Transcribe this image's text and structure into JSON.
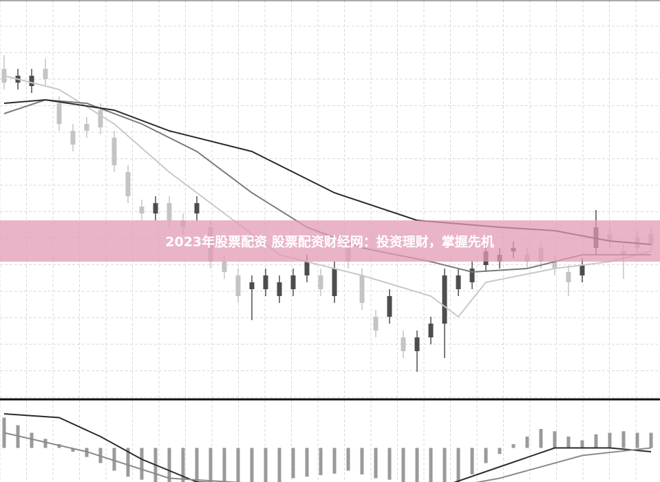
{
  "chart_data": [
    {
      "type": "candlestick",
      "title": "2023年股票配资 股票配资财经网：投资理财，掌握先机",
      "grid": true,
      "up_color": "#4d4d4d",
      "down_color": "#c4c4c4",
      "ylim": [
        0,
        580
      ],
      "open": [
        480,
        460,
        455,
        480,
        430,
        390,
        400,
        420,
        380,
        330,
        280,
        270,
        285,
        260,
        270,
        250,
        200,
        180,
        160,
        160,
        150,
        160,
        180,
        180,
        150,
        220,
        180,
        120,
        120,
        90,
        70,
        90,
        110,
        160,
        170,
        195,
        200,
        215,
        210,
        220,
        200,
        185,
        180,
        220,
        240,
        215,
        235,
        240
      ],
      "close": [
        460,
        470,
        470,
        465,
        400,
        370,
        390,
        395,
        340,
        295,
        270,
        285,
        260,
        250,
        285,
        200,
        185,
        150,
        170,
        180,
        170,
        180,
        200,
        160,
        190,
        200,
        140,
        100,
        150,
        70,
        90,
        110,
        180,
        180,
        190,
        215,
        210,
        220,
        200,
        200,
        190,
        170,
        195,
        250,
        230,
        210,
        220,
        225
      ],
      "high": [
        500,
        480,
        480,
        495,
        440,
        400,
        410,
        430,
        390,
        340,
        290,
        295,
        295,
        270,
        295,
        260,
        210,
        190,
        180,
        190,
        180,
        190,
        210,
        190,
        200,
        230,
        190,
        130,
        160,
        100,
        100,
        120,
        190,
        190,
        200,
        225,
        220,
        230,
        220,
        230,
        210,
        195,
        205,
        275,
        250,
        225,
        245,
        250
      ],
      "low": [
        450,
        450,
        445,
        455,
        390,
        360,
        380,
        385,
        330,
        285,
        260,
        260,
        250,
        240,
        260,
        190,
        175,
        140,
        115,
        150,
        140,
        150,
        170,
        150,
        140,
        190,
        130,
        90,
        110,
        60,
        40,
        80,
        60,
        150,
        160,
        185,
        190,
        205,
        190,
        190,
        180,
        150,
        170,
        210,
        220,
        175,
        210,
        215
      ],
      "series": [
        {
          "color": "#c8c8c8",
          "x": [
            0,
            4,
            8,
            12,
            16,
            20,
            26,
            31,
            33,
            35,
            40,
            44,
            47
          ],
          "values": [
            470,
            450,
            400,
            330,
            270,
            210,
            180,
            150,
            120,
            170,
            190,
            200,
            215
          ]
        },
        {
          "color": "#7a7a7a",
          "x": [
            0,
            3,
            6,
            10,
            14,
            18,
            22,
            26,
            31,
            34,
            38,
            42,
            47
          ],
          "values": [
            415,
            435,
            430,
            400,
            360,
            300,
            250,
            220,
            200,
            185,
            190,
            210,
            210
          ]
        },
        {
          "color": "#2a2a2a",
          "x": [
            0,
            3,
            8,
            12,
            18,
            24,
            30,
            36,
            40,
            44,
            47
          ],
          "values": [
            430,
            435,
            420,
            390,
            360,
            300,
            260,
            250,
            245,
            230,
            225
          ]
        }
      ]
    },
    {
      "type": "macd",
      "ylim": [
        -45,
        55
      ],
      "color": "#9a9a9a",
      "values": [
        40,
        30,
        20,
        12,
        5,
        -5,
        -12,
        -20,
        -30,
        -38,
        -42,
        -45,
        -45,
        -45,
        -45,
        -45,
        -45,
        -45,
        -45,
        -45,
        -45,
        -40,
        -38,
        -36,
        -34,
        -30,
        -35,
        -40,
        -42,
        -45,
        -45,
        -45,
        -45,
        -45,
        -35,
        -20,
        -8,
        5,
        15,
        25,
        22,
        15,
        10,
        18,
        20,
        22,
        20,
        20
      ],
      "series": [
        {
          "color": "#2a2a2a",
          "x": [
            0,
            4,
            7,
            10,
            14,
            28,
            32,
            36,
            40,
            44,
            47
          ],
          "values": [
            45,
            40,
            15,
            -15,
            -45,
            -55,
            -50,
            -25,
            0,
            0,
            -5
          ]
        },
        {
          "color": "#8a8a8a",
          "x": [
            0,
            6,
            12,
            30,
            36,
            42,
            47
          ],
          "values": [
            20,
            -5,
            -40,
            -60,
            -40,
            -10,
            0
          ]
        }
      ]
    }
  ]
}
